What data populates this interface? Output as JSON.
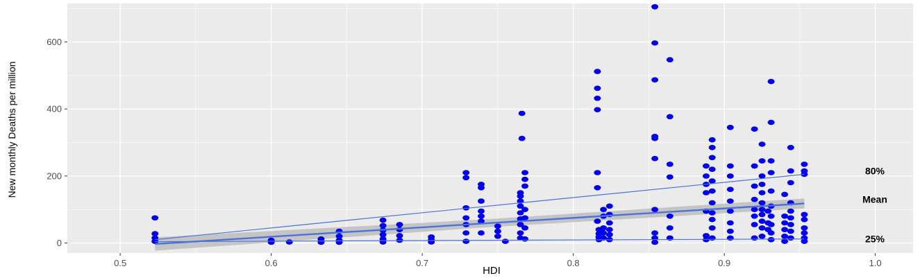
{
  "chart_data": {
    "type": "scatter",
    "title": "",
    "xlabel": "HDI",
    "ylabel": "New monthly Deaths per million",
    "xlim": [
      0.465,
      1.025
    ],
    "ylim": [
      -30,
      715
    ],
    "xticks": [
      "0.5",
      "0.6",
      "0.7",
      "0.8",
      "0.9",
      "1.0"
    ],
    "yticks": [
      "0",
      "200",
      "400",
      "600"
    ],
    "grid": true,
    "panel_background": "#ebebeb",
    "grid_color": "#ffffff",
    "point_color": "#0000ee",
    "line_color": "#4a72d8",
    "band_color": "#bdbdbd",
    "points": [
      [
        0.523,
        75
      ],
      [
        0.523,
        28
      ],
      [
        0.523,
        15
      ],
      [
        0.523,
        5
      ],
      [
        0.6,
        8
      ],
      [
        0.6,
        2
      ],
      [
        0.612,
        3
      ],
      [
        0.633,
        12
      ],
      [
        0.633,
        5
      ],
      [
        0.633,
        2
      ],
      [
        0.645,
        35
      ],
      [
        0.645,
        20
      ],
      [
        0.645,
        8
      ],
      [
        0.645,
        2
      ],
      [
        0.674,
        68
      ],
      [
        0.674,
        52
      ],
      [
        0.674,
        38
      ],
      [
        0.674,
        25
      ],
      [
        0.674,
        12
      ],
      [
        0.674,
        3
      ],
      [
        0.685,
        55
      ],
      [
        0.685,
        40
      ],
      [
        0.685,
        22
      ],
      [
        0.685,
        8
      ],
      [
        0.706,
        18
      ],
      [
        0.706,
        10
      ],
      [
        0.706,
        3
      ],
      [
        0.729,
        210
      ],
      [
        0.729,
        195
      ],
      [
        0.729,
        105
      ],
      [
        0.729,
        75
      ],
      [
        0.729,
        55
      ],
      [
        0.729,
        30
      ],
      [
        0.729,
        5
      ],
      [
        0.739,
        175
      ],
      [
        0.739,
        165
      ],
      [
        0.739,
        125
      ],
      [
        0.739,
        95
      ],
      [
        0.739,
        80
      ],
      [
        0.739,
        65
      ],
      [
        0.739,
        30
      ],
      [
        0.75,
        50
      ],
      [
        0.75,
        35
      ],
      [
        0.75,
        20
      ],
      [
        0.755,
        5
      ],
      [
        0.765,
        150
      ],
      [
        0.765,
        140
      ],
      [
        0.765,
        125
      ],
      [
        0.765,
        110
      ],
      [
        0.765,
        90
      ],
      [
        0.765,
        72
      ],
      [
        0.765,
        55
      ],
      [
        0.765,
        30
      ],
      [
        0.765,
        15
      ],
      [
        0.766,
        387
      ],
      [
        0.766,
        312
      ],
      [
        0.768,
        210
      ],
      [
        0.768,
        190
      ],
      [
        0.768,
        170
      ],
      [
        0.768,
        100
      ],
      [
        0.768,
        75
      ],
      [
        0.768,
        45
      ],
      [
        0.768,
        12
      ],
      [
        0.816,
        512
      ],
      [
        0.816,
        462
      ],
      [
        0.816,
        432
      ],
      [
        0.816,
        398
      ],
      [
        0.816,
        210
      ],
      [
        0.816,
        165
      ],
      [
        0.816,
        65
      ],
      [
        0.817,
        40
      ],
      [
        0.817,
        28
      ],
      [
        0.817,
        18
      ],
      [
        0.817,
        10
      ],
      [
        0.82,
        100
      ],
      [
        0.82,
        80
      ],
      [
        0.82,
        45
      ],
      [
        0.82,
        30
      ],
      [
        0.82,
        15
      ],
      [
        0.824,
        110
      ],
      [
        0.824,
        85
      ],
      [
        0.824,
        60
      ],
      [
        0.824,
        40
      ],
      [
        0.824,
        25
      ],
      [
        0.824,
        10
      ],
      [
        0.854,
        705
      ],
      [
        0.854,
        597
      ],
      [
        0.854,
        487
      ],
      [
        0.854,
        318
      ],
      [
        0.854,
        312
      ],
      [
        0.854,
        252
      ],
      [
        0.854,
        100
      ],
      [
        0.854,
        30
      ],
      [
        0.854,
        15
      ],
      [
        0.854,
        2
      ],
      [
        0.864,
        547
      ],
      [
        0.864,
        377
      ],
      [
        0.864,
        235
      ],
      [
        0.864,
        197
      ],
      [
        0.864,
        80
      ],
      [
        0.864,
        45
      ],
      [
        0.864,
        15
      ],
      [
        0.888,
        230
      ],
      [
        0.888,
        200
      ],
      [
        0.888,
        175
      ],
      [
        0.888,
        150
      ],
      [
        0.888,
        95
      ],
      [
        0.888,
        22
      ],
      [
        0.888,
        10
      ],
      [
        0.892,
        308
      ],
      [
        0.892,
        285
      ],
      [
        0.892,
        255
      ],
      [
        0.892,
        220
      ],
      [
        0.892,
        185
      ],
      [
        0.892,
        155
      ],
      [
        0.892,
        120
      ],
      [
        0.892,
        90
      ],
      [
        0.892,
        70
      ],
      [
        0.892,
        45
      ],
      [
        0.892,
        15
      ],
      [
        0.904,
        345
      ],
      [
        0.904,
        230
      ],
      [
        0.904,
        200
      ],
      [
        0.904,
        160
      ],
      [
        0.904,
        125
      ],
      [
        0.904,
        95
      ],
      [
        0.904,
        60
      ],
      [
        0.904,
        35
      ],
      [
        0.904,
        15
      ],
      [
        0.92,
        340
      ],
      [
        0.92,
        230
      ],
      [
        0.92,
        170
      ],
      [
        0.92,
        130
      ],
      [
        0.92,
        100
      ],
      [
        0.92,
        80
      ],
      [
        0.92,
        55
      ],
      [
        0.92,
        15
      ],
      [
        0.925,
        295
      ],
      [
        0.925,
        245
      ],
      [
        0.925,
        200
      ],
      [
        0.925,
        175
      ],
      [
        0.925,
        150
      ],
      [
        0.925,
        120
      ],
      [
        0.925,
        100
      ],
      [
        0.925,
        85
      ],
      [
        0.925,
        65
      ],
      [
        0.925,
        45
      ],
      [
        0.925,
        20
      ],
      [
        0.929,
        95
      ],
      [
        0.929,
        60
      ],
      [
        0.929,
        40
      ],
      [
        0.931,
        482
      ],
      [
        0.931,
        360
      ],
      [
        0.931,
        245
      ],
      [
        0.931,
        210
      ],
      [
        0.931,
        155
      ],
      [
        0.931,
        110
      ],
      [
        0.931,
        80
      ],
      [
        0.931,
        55
      ],
      [
        0.931,
        30
      ],
      [
        0.931,
        10
      ],
      [
        0.94,
        145
      ],
      [
        0.94,
        80
      ],
      [
        0.94,
        60
      ],
      [
        0.94,
        40
      ],
      [
        0.94,
        20
      ],
      [
        0.94,
        5
      ],
      [
        0.944,
        285
      ],
      [
        0.944,
        215
      ],
      [
        0.944,
        180
      ],
      [
        0.944,
        120
      ],
      [
        0.944,
        95
      ],
      [
        0.944,
        75
      ],
      [
        0.944,
        55
      ],
      [
        0.944,
        35
      ],
      [
        0.944,
        15
      ],
      [
        0.953,
        235
      ],
      [
        0.953,
        215
      ],
      [
        0.953,
        205
      ],
      [
        0.953,
        85
      ],
      [
        0.953,
        70
      ],
      [
        0.953,
        45
      ],
      [
        0.953,
        30
      ],
      [
        0.953,
        15
      ],
      [
        0.953,
        5
      ]
    ],
    "fit_lines": [
      {
        "label": "80%",
        "x": [
          0.523,
          0.953
        ],
        "y": [
          10,
          205
        ],
        "thickness": "thin"
      },
      {
        "label": "Mean",
        "x": [
          0.523,
          0.953
        ],
        "y": [
          -3,
          118
        ],
        "thickness": "thick",
        "band_halfwidth": [
          20,
          15
        ],
        "band_mid": 12
      },
      {
        "label": "25%",
        "x": [
          0.523,
          0.953
        ],
        "y": [
          4,
          12
        ],
        "thickness": "thin"
      }
    ],
    "annotations": [
      "80%",
      "Mean",
      "25%"
    ]
  }
}
